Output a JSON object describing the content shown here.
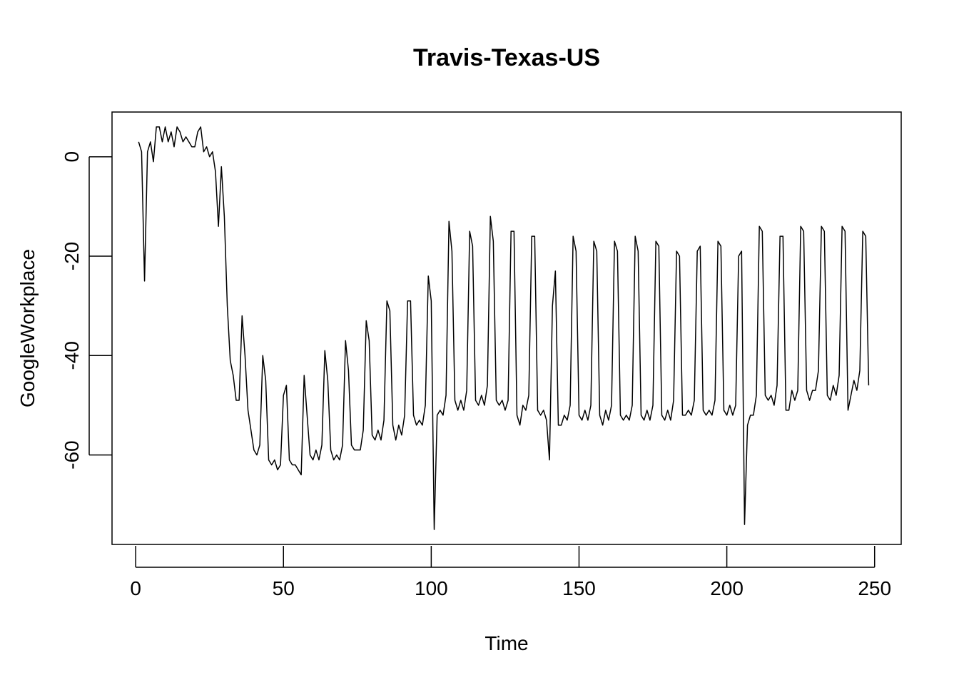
{
  "chart_data": {
    "type": "line",
    "title": "Travis-Texas-US",
    "xlabel": "Time",
    "ylabel": "GoogleWorkplace",
    "xlim": [
      -8,
      259
    ],
    "ylim": [
      -78,
      9
    ],
    "x_ticks": [
      0,
      50,
      100,
      150,
      200,
      250
    ],
    "y_ticks": [
      0,
      -20,
      -40,
      -60
    ],
    "grid": false,
    "legend": "none",
    "line_color": "#000000",
    "x_start": 1,
    "series": [
      {
        "values": [
          3,
          1,
          -25,
          1,
          3,
          -1,
          6,
          6,
          3,
          6,
          3,
          5,
          2,
          6,
          5,
          3,
          4,
          3,
          2,
          2,
          5,
          6,
          1,
          2,
          0,
          1,
          -3,
          -14,
          -2,
          -12,
          -30,
          -41,
          -44,
          -49,
          -49,
          -32,
          -40,
          -51,
          -55,
          -59,
          -60,
          -58,
          -40,
          -45,
          -61,
          -62,
          -61,
          -63,
          -62,
          -48,
          -46,
          -61,
          -62,
          -62,
          -63,
          -64,
          -44,
          -52,
          -60,
          -61,
          -59,
          -61,
          -58,
          -39,
          -45,
          -59,
          -61,
          -60,
          -61,
          -58,
          -37,
          -43,
          -58,
          -59,
          -59,
          -59,
          -55,
          -33,
          -37,
          -56,
          -57,
          -55,
          -57,
          -53,
          -29,
          -31,
          -54,
          -57,
          -54,
          -56,
          -52,
          -29,
          -29,
          -52,
          -54,
          -53,
          -54,
          -50,
          -24,
          -29,
          -75,
          -52,
          -51,
          -52,
          -48,
          -13,
          -19,
          -49,
          -51,
          -49,
          -51,
          -47,
          -15,
          -18,
          -49,
          -50,
          -48,
          -50,
          -46,
          -12,
          -17,
          -49,
          -50,
          -49,
          -51,
          -49,
          -15,
          -15,
          -52,
          -54,
          -50,
          -51,
          -48,
          -16,
          -16,
          -51,
          -52,
          -51,
          -53,
          -61,
          -30,
          -23,
          -54,
          -54,
          -52,
          -53,
          -50,
          -16,
          -19,
          -52,
          -53,
          -51,
          -53,
          -50,
          -17,
          -19,
          -52,
          -54,
          -51,
          -53,
          -50,
          -17,
          -19,
          -52,
          -53,
          -52,
          -53,
          -50,
          -16,
          -19,
          -52,
          -53,
          -51,
          -53,
          -50,
          -17,
          -18,
          -52,
          -53,
          -51,
          -53,
          -49,
          -19,
          -20,
          -52,
          -52,
          -51,
          -52,
          -49,
          -19,
          -18,
          -51,
          -52,
          -51,
          -52,
          -49,
          -17,
          -18,
          -51,
          -52,
          -50,
          -52,
          -50,
          -20,
          -19,
          -74,
          -54,
          -52,
          -52,
          -48,
          -14,
          -15,
          -48,
          -49,
          -48,
          -50,
          -46,
          -16,
          -16,
          -51,
          -51,
          -47,
          -49,
          -47,
          -14,
          -15,
          -47,
          -49,
          -47,
          -47,
          -43,
          -14,
          -15,
          -48,
          -49,
          -46,
          -48,
          -44,
          -14,
          -15,
          -51,
          -48,
          -45,
          -47,
          -43,
          -15,
          -16,
          -46
        ]
      }
    ]
  }
}
